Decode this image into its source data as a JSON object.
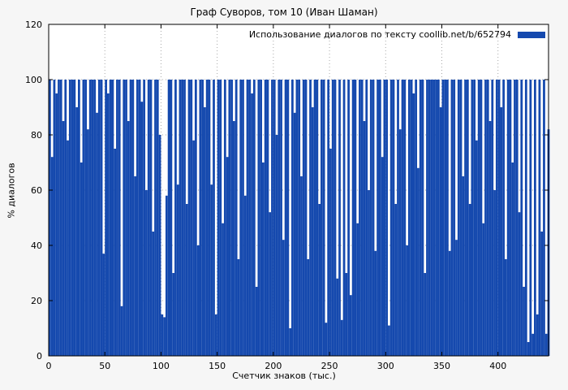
{
  "colors": {
    "bar": "#1549ae",
    "grid": "#a8a8a8",
    "axis": "#000000",
    "page_bg": "#f6f6f6",
    "plot_bg": "#ffffff"
  },
  "chart_data": {
    "type": "bar",
    "title": "Граф Суворов, том 10 (Иван Шаман)",
    "legend": "Использование диалогов по тексту coollib.net/b/652794",
    "xlabel": "Счетчик знаков (тыс.)",
    "ylabel": "% диалогов",
    "xlim": [
      0,
      445
    ],
    "ylim": [
      0,
      120
    ],
    "x_ticks": [
      0,
      50,
      100,
      150,
      200,
      250,
      300,
      350,
      400
    ],
    "y_ticks": [
      0,
      20,
      40,
      60,
      80,
      100,
      120
    ],
    "grid": true,
    "legend_position": "top-right",
    "x_start": 0,
    "x_step": 2,
    "values": [
      100,
      72,
      100,
      95,
      100,
      100,
      85,
      100,
      78,
      100,
      100,
      100,
      90,
      100,
      70,
      100,
      100,
      82,
      100,
      100,
      100,
      88,
      100,
      100,
      37,
      100,
      95,
      100,
      100,
      75,
      100,
      100,
      18,
      100,
      100,
      85,
      100,
      100,
      65,
      100,
      100,
      92,
      100,
      60,
      100,
      100,
      45,
      100,
      100,
      80,
      15,
      14,
      58,
      100,
      100,
      30,
      100,
      62,
      100,
      100,
      100,
      55,
      100,
      100,
      78,
      100,
      40,
      100,
      100,
      90,
      100,
      100,
      62,
      100,
      15,
      100,
      100,
      48,
      100,
      72,
      100,
      100,
      85,
      100,
      35,
      100,
      100,
      58,
      100,
      100,
      95,
      100,
      25,
      100,
      100,
      70,
      100,
      100,
      52,
      100,
      100,
      80,
      100,
      100,
      42,
      100,
      100,
      10,
      100,
      88,
      100,
      100,
      65,
      100,
      100,
      35,
      100,
      90,
      100,
      100,
      55,
      100,
      100,
      12,
      100,
      75,
      100,
      100,
      28,
      100,
      13,
      100,
      30,
      100,
      22,
      100,
      100,
      48,
      100,
      100,
      85,
      100,
      60,
      100,
      100,
      38,
      100,
      100,
      72,
      100,
      100,
      11,
      100,
      100,
      55,
      100,
      82,
      100,
      100,
      40,
      100,
      100,
      95,
      100,
      68,
      100,
      100,
      30,
      100,
      100,
      100,
      100,
      100,
      100,
      90,
      100,
      100,
      100,
      38,
      100,
      100,
      42,
      100,
      100,
      65,
      100,
      100,
      55,
      100,
      100,
      78,
      100,
      100,
      48,
      100,
      100,
      85,
      100,
      60,
      100,
      100,
      90,
      100,
      35,
      100,
      100,
      70,
      100,
      100,
      52,
      100,
      25,
      100,
      5,
      100,
      8,
      100,
      15,
      100,
      45,
      100,
      8,
      82
    ]
  }
}
